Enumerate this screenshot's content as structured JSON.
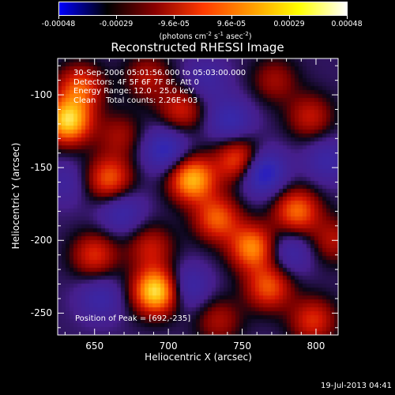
{
  "colorbar": {
    "tick_labels": [
      "-0.00048",
      "-0.00029",
      "-9.6e-05",
      "9.6e-05",
      "0.00029",
      "0.00048"
    ],
    "units_text": "(photons cm",
    "units_exp1": "-2",
    "units_mid": " s",
    "units_exp2": "-1",
    "units_mid2": " asec",
    "units_exp3": "-2",
    "units_end": ")",
    "gradient_colors": [
      "#0000ff",
      "#000000",
      "#8a0000",
      "#ff3a00",
      "#ff9a00",
      "#ffff00",
      "#ffffff"
    ]
  },
  "title": "Reconstructed RHESSI Image",
  "overlay": {
    "line1": "30-Sep-2006 05:01:56.000 to 05:03:00.000",
    "line2": "Detectors: 4F 5F 6F 7F 8F, Att 0",
    "line3": "Energy Range: 12.0 - 25.0 keV",
    "line4": "Clean    Total counts: 2.26E+03",
    "peak": "Position of Peak = [692,-235]"
  },
  "axes": {
    "xlabel": "Heliocentric X (arcsec)",
    "ylabel": "Heliocentric Y (arcsec)",
    "x_ticks": [
      "650",
      "700",
      "750",
      "800"
    ],
    "y_ticks": [
      "-100",
      "-150",
      "-200",
      "-250"
    ]
  },
  "timestamp": "19-Jul-2013 04:41",
  "chart_data": {
    "type": "heatmap",
    "title": "Reconstructed RHESSI Image",
    "xlabel": "Heliocentric X (arcsec)",
    "ylabel": "Heliocentric Y (arcsec)",
    "xlim": [
      625,
      815
    ],
    "ylim": [
      -265,
      -75
    ],
    "x_ticks": [
      650,
      700,
      750,
      800
    ],
    "y_ticks": [
      -100,
      -150,
      -200,
      -250
    ],
    "colorbar_range": [
      -0.00048,
      0.00048
    ],
    "colorbar_ticks": [
      -0.00048,
      -0.00029,
      -9.6e-05,
      9.6e-05,
      0.00029,
      0.00048
    ],
    "peak_position": [
      692,
      -235
    ],
    "sources": [
      {
        "x": 692,
        "y": -235,
        "value": 0.00048
      },
      {
        "x": 632,
        "y": -118,
        "value": 0.00044
      },
      {
        "x": 716,
        "y": -158,
        "value": 0.0004
      },
      {
        "x": 757,
        "y": -205,
        "value": 0.00034
      },
      {
        "x": 660,
        "y": -158,
        "value": 0.00028
      },
      {
        "x": 748,
        "y": -145,
        "value": 0.0003
      },
      {
        "x": 787,
        "y": -180,
        "value": 0.0003
      },
      {
        "x": 733,
        "y": -185,
        "value": 0.00028
      },
      {
        "x": 768,
        "y": -232,
        "value": 0.00027
      },
      {
        "x": 640,
        "y": -95,
        "value": 0.00026
      },
      {
        "x": 650,
        "y": -210,
        "value": 0.00022
      },
      {
        "x": 798,
        "y": -255,
        "value": 0.00022
      },
      {
        "x": 709,
        "y": -110,
        "value": 0.0002
      },
      {
        "x": 796,
        "y": -115,
        "value": 0.00018
      },
      {
        "x": 688,
        "y": -205,
        "value": 0.00018
      },
      {
        "x": 734,
        "y": -255,
        "value": 0.00015
      },
      {
        "x": 686,
        "y": -88,
        "value": 0.00016
      },
      {
        "x": 772,
        "y": -90,
        "value": 0.00014
      },
      {
        "x": 812,
        "y": -200,
        "value": 0.00016
      },
      {
        "x": 667,
        "y": -128,
        "value": 0.00014
      },
      {
        "x": 763,
        "y": -153,
        "value": -0.0003
      },
      {
        "x": 698,
        "y": -138,
        "value": -0.00022
      },
      {
        "x": 742,
        "y": -118,
        "value": -0.00018
      },
      {
        "x": 668,
        "y": -180,
        "value": -0.00016
      },
      {
        "x": 712,
        "y": -232,
        "value": -0.00018
      },
      {
        "x": 782,
        "y": -208,
        "value": -0.00015
      },
      {
        "x": 654,
        "y": -240,
        "value": -0.00014
      },
      {
        "x": 808,
        "y": -145,
        "value": -0.00014
      },
      {
        "x": 725,
        "y": -90,
        "value": -0.00012
      },
      {
        "x": 630,
        "y": -160,
        "value": -0.0001
      }
    ]
  }
}
